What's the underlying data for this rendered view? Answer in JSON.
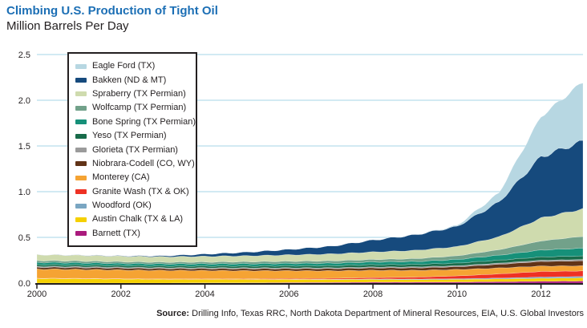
{
  "header": {
    "title": "Climbing U.S. Production of Tight Oil",
    "subtitle": "Million Barrels Per Day"
  },
  "source": {
    "label": "Source:",
    "text": " Drilling Info, Texas RRC, North Dakota Department of Mineral Resources, EIA, U.S. Global Investors"
  },
  "colors": {
    "title_blue": "#1c6fb5",
    "text": "#231f20",
    "gridline": "#c3e3ef",
    "axis_line": "#231f20",
    "legend_border": "#231f20",
    "background": "#ffffff"
  },
  "chart_data": {
    "type": "area",
    "stacked": true,
    "title": "Climbing U.S. Production of Tight Oil",
    "ylabel": "Million Barrels Per Day",
    "xlabel": "",
    "grid": "horizontal",
    "legend_position": "upper-left",
    "xlim": [
      2000,
      2013
    ],
    "ylim": [
      0,
      2.5
    ],
    "x_tick_labels": [
      "2000",
      "2002",
      "2004",
      "2006",
      "2008",
      "2010",
      "2012"
    ],
    "x_tick_values": [
      2000,
      2002,
      2004,
      2006,
      2008,
      2010,
      2012
    ],
    "y_tick_labels": [
      "0.0",
      "0.5",
      "1.0",
      "1.5",
      "2.0",
      "2.5"
    ],
    "y_tick_values": [
      0,
      0.5,
      1.0,
      1.5,
      2.0,
      2.5
    ],
    "x": [
      2000,
      2001,
      2002,
      2003,
      2004,
      2005,
      2006,
      2007,
      2008,
      2009,
      2010,
      2011,
      2012,
      2013
    ],
    "stack_order_note": "legend lists top layer first; bottom of stack is last legend entry (Barnett)",
    "series": [
      {
        "name": "Eagle Ford (TX)",
        "color": "#b7d7e2",
        "values": [
          0,
          0,
          0,
          0,
          0,
          0,
          0,
          0,
          0,
          0.001,
          0.01,
          0.1,
          0.44,
          0.65
        ]
      },
      {
        "name": "Bakken (ND & MT)",
        "color": "#164a7d",
        "values": [
          0.002,
          0.003,
          0.005,
          0.01,
          0.025,
          0.04,
          0.06,
          0.085,
          0.13,
          0.17,
          0.22,
          0.38,
          0.67,
          0.74
        ]
      },
      {
        "name": "Spraberry (TX Permian)",
        "color": "#cfdbae",
        "values": [
          0.064,
          0.062,
          0.06,
          0.06,
          0.062,
          0.065,
          0.07,
          0.075,
          0.082,
          0.09,
          0.1,
          0.14,
          0.25,
          0.3
        ]
      },
      {
        "name": "Wolfcamp (TX Permian)",
        "color": "#72a18a",
        "values": [
          0.02,
          0.02,
          0.019,
          0.019,
          0.02,
          0.022,
          0.024,
          0.026,
          0.028,
          0.032,
          0.04,
          0.06,
          0.1,
          0.13
        ]
      },
      {
        "name": "Bone Spring (TX Permian)",
        "color": "#169079",
        "values": [
          0.025,
          0.024,
          0.023,
          0.023,
          0.024,
          0.025,
          0.026,
          0.028,
          0.03,
          0.032,
          0.04,
          0.055,
          0.075,
          0.085
        ]
      },
      {
        "name": "Yeso (TX Permian)",
        "color": "#186b4a",
        "values": [
          0.018,
          0.018,
          0.018,
          0.018,
          0.019,
          0.02,
          0.021,
          0.022,
          0.024,
          0.026,
          0.028,
          0.032,
          0.036,
          0.038
        ]
      },
      {
        "name": "Glorieta (TX Permian)",
        "color": "#9b9b9b",
        "values": [
          0.01,
          0.01,
          0.01,
          0.01,
          0.01,
          0.01,
          0.01,
          0.01,
          0.011,
          0.011,
          0.012,
          0.013,
          0.014,
          0.015
        ]
      },
      {
        "name": "Niobrara-Codell (CO, WY)",
        "color": "#613317",
        "values": [
          0.02,
          0.02,
          0.02,
          0.02,
          0.02,
          0.021,
          0.022,
          0.023,
          0.025,
          0.027,
          0.03,
          0.04,
          0.05,
          0.055
        ]
      },
      {
        "name": "Monterey (CA)",
        "color": "#f5a333",
        "values": [
          0.1,
          0.098,
          0.095,
          0.092,
          0.09,
          0.088,
          0.085,
          0.082,
          0.08,
          0.075,
          0.07,
          0.065,
          0.06,
          0.055
        ]
      },
      {
        "name": "Granite Wash (TX & OK)",
        "color": "#ee3124",
        "values": [
          0.003,
          0.003,
          0.003,
          0.004,
          0.005,
          0.006,
          0.008,
          0.01,
          0.015,
          0.02,
          0.03,
          0.045,
          0.06,
          0.06
        ]
      },
      {
        "name": "Woodford (OK)",
        "color": "#7aa6c2",
        "values": [
          0,
          0,
          0,
          0,
          0,
          0,
          0.002,
          0.003,
          0.005,
          0.006,
          0.008,
          0.01,
          0.014,
          0.016
        ]
      },
      {
        "name": "Austin Chalk (TX & LA)",
        "color": "#f5d000",
        "values": [
          0.05,
          0.048,
          0.045,
          0.042,
          0.04,
          0.038,
          0.035,
          0.032,
          0.03,
          0.028,
          0.028,
          0.03,
          0.032,
          0.035
        ]
      },
      {
        "name": "Barnett (TX)",
        "color": "#aa1a7d",
        "values": [
          0,
          0,
          0,
          0,
          0.002,
          0.003,
          0.005,
          0.007,
          0.01,
          0.01,
          0.012,
          0.015,
          0.02,
          0.022
        ]
      }
    ]
  },
  "plot_geometry_note": "values in million barrels per day, estimated from chart"
}
